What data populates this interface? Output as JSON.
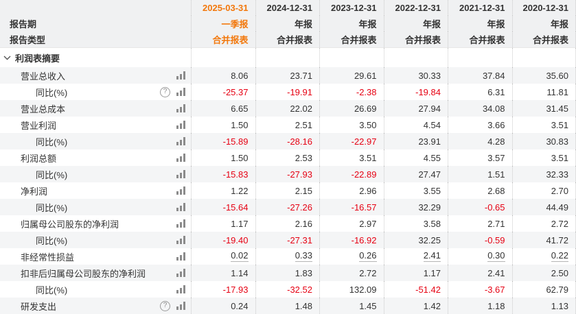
{
  "colors": {
    "accent_orange": "#f2780c",
    "negative_red": "#e60012",
    "text": "#333333",
    "header_bg": "#f0f1f2",
    "stripe_bg": "#f4f5f6"
  },
  "header": {
    "period_row_label": "报告期",
    "type_row_label": "报告类型",
    "columns": [
      {
        "date": "2025-03-31",
        "period": "一季报",
        "type": "合并报表",
        "highlight": true
      },
      {
        "date": "2024-12-31",
        "period": "年报",
        "type": "合并报表",
        "highlight": false
      },
      {
        "date": "2023-12-31",
        "period": "年报",
        "type": "合并报表",
        "highlight": false
      },
      {
        "date": "2022-12-31",
        "period": "年报",
        "type": "合并报表",
        "highlight": false
      },
      {
        "date": "2021-12-31",
        "period": "年报",
        "type": "合并报表",
        "highlight": false
      },
      {
        "date": "2020-12-31",
        "period": "年报",
        "type": "合并报表",
        "highlight": false
      }
    ]
  },
  "section": {
    "label": "利润表摘要",
    "expanded": true,
    "chevron_icon": "chevron-down-icon"
  },
  "icons": {
    "help": "?",
    "bar_chart": "bar-chart-icon"
  },
  "rows": [
    {
      "label": "营业总收入",
      "indent": 1,
      "help": false,
      "underline": false,
      "values": [
        "8.06",
        "23.71",
        "29.61",
        "30.33",
        "37.84",
        "35.60"
      ]
    },
    {
      "label": "同比(%)",
      "indent": 2,
      "help": true,
      "underline": false,
      "values": [
        "-25.37",
        "-19.91",
        "-2.38",
        "-19.84",
        "6.31",
        "11.81"
      ]
    },
    {
      "label": "营业总成本",
      "indent": 1,
      "help": false,
      "underline": false,
      "values": [
        "6.65",
        "22.02",
        "26.69",
        "27.94",
        "34.08",
        "31.45"
      ]
    },
    {
      "label": "营业利润",
      "indent": 1,
      "help": false,
      "underline": false,
      "values": [
        "1.50",
        "2.51",
        "3.50",
        "4.54",
        "3.66",
        "3.51"
      ]
    },
    {
      "label": "同比(%)",
      "indent": 2,
      "help": false,
      "underline": false,
      "values": [
        "-15.89",
        "-28.16",
        "-22.97",
        "23.91",
        "4.28",
        "30.83"
      ]
    },
    {
      "label": "利润总额",
      "indent": 1,
      "help": false,
      "underline": false,
      "values": [
        "1.50",
        "2.53",
        "3.51",
        "4.55",
        "3.57",
        "3.51"
      ]
    },
    {
      "label": "同比(%)",
      "indent": 2,
      "help": false,
      "underline": false,
      "values": [
        "-15.83",
        "-27.93",
        "-22.89",
        "27.47",
        "1.51",
        "32.33"
      ]
    },
    {
      "label": "净利润",
      "indent": 1,
      "help": false,
      "underline": false,
      "values": [
        "1.22",
        "2.15",
        "2.96",
        "3.55",
        "2.68",
        "2.70"
      ]
    },
    {
      "label": "同比(%)",
      "indent": 2,
      "help": false,
      "underline": false,
      "values": [
        "-15.64",
        "-27.26",
        "-16.57",
        "32.29",
        "-0.65",
        "44.49"
      ]
    },
    {
      "label": "归属母公司股东的净利润",
      "indent": 1,
      "help": false,
      "underline": false,
      "values": [
        "1.17",
        "2.16",
        "2.97",
        "3.58",
        "2.71",
        "2.72"
      ]
    },
    {
      "label": "同比(%)",
      "indent": 2,
      "help": false,
      "underline": false,
      "values": [
        "-19.40",
        "-27.31",
        "-16.92",
        "32.25",
        "-0.59",
        "41.72"
      ]
    },
    {
      "label": "非经常性损益",
      "indent": 1,
      "help": false,
      "underline": true,
      "values": [
        "0.02",
        "0.33",
        "0.26",
        "2.41",
        "0.30",
        "0.22"
      ]
    },
    {
      "label": "扣非后归属母公司股东的净利润",
      "indent": 1,
      "help": false,
      "underline": false,
      "values": [
        "1.14",
        "1.83",
        "2.72",
        "1.17",
        "2.41",
        "2.50"
      ]
    },
    {
      "label": "同比(%)",
      "indent": 2,
      "help": false,
      "underline": false,
      "values": [
        "-17.93",
        "-32.52",
        "132.09",
        "-51.42",
        "-3.67",
        "62.79"
      ]
    },
    {
      "label": "研发支出",
      "indent": 1,
      "help": true,
      "underline": false,
      "values": [
        "0.24",
        "1.48",
        "1.45",
        "1.42",
        "1.18",
        "1.13"
      ]
    }
  ]
}
